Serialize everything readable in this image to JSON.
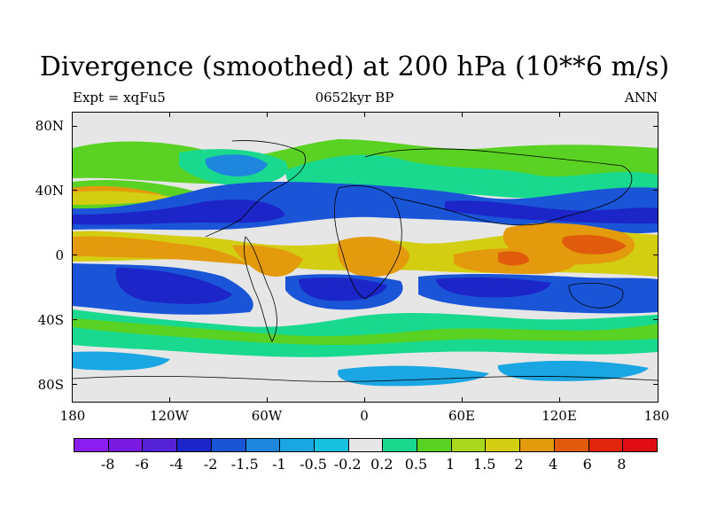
{
  "title": "Divergence (smoothed) at 200 hPa (10**6 m/s)",
  "subtitle_left": "Expt = xqFu5",
  "subtitle_center": "0652kyr BP",
  "subtitle_right": "ANN",
  "x_axis_labels": [
    "180",
    "120W",
    "60W",
    "0",
    "60E",
    "120E",
    "180"
  ],
  "y_axis_labels": [
    "80N",
    "40N",
    "0",
    "40S",
    "80S"
  ],
  "colorbar": {
    "labels": [
      "-8",
      "-6",
      "-4",
      "-2",
      "-1.5",
      "-1",
      "-0.5",
      "-0.2",
      "0.2",
      "0.5",
      "1",
      "1.5",
      "2",
      "4",
      "6",
      "8"
    ],
    "colors": [
      "#8a1df0",
      "#7a19e0",
      "#5522d8",
      "#1c26c8",
      "#1a55d8",
      "#1f86de",
      "#1aa6e2",
      "#18c0e0",
      "#e6e6e6",
      "#19d98f",
      "#5ad224",
      "#a8d71d",
      "#d4ce13",
      "#e39b0d",
      "#e05b0c",
      "#e2250d",
      "#e00d12"
    ]
  }
}
